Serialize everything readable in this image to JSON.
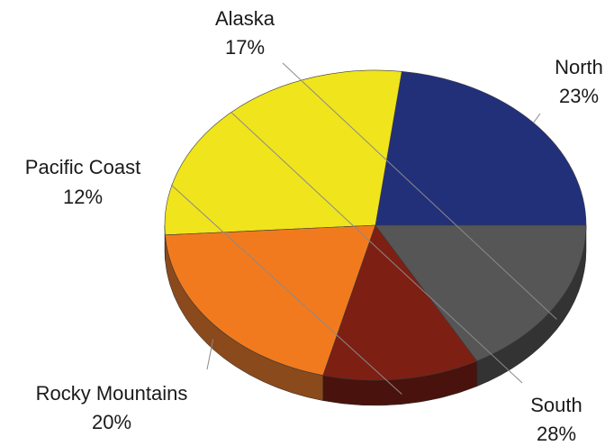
{
  "chart_data": {
    "type": "pie",
    "style": "3d",
    "slices": [
      {
        "label": "North",
        "value": 23,
        "value_label": "23%",
        "color": "#22307a",
        "side_color": "#141c4a"
      },
      {
        "label": "South",
        "value": 28,
        "value_label": "28%",
        "color": "#f0e41c",
        "side_color": "#7c7a3a"
      },
      {
        "label": "Rocky Mountains",
        "value": 20,
        "value_label": "20%",
        "color": "#f27a1e",
        "side_color": "#8a4a1c"
      },
      {
        "label": "Pacific Coast",
        "value": 12,
        "value_label": "12%",
        "color": "#7e1f14",
        "side_color": "#4a120c"
      },
      {
        "label": "Alaska",
        "value": 17,
        "value_label": "17%",
        "color": "#565656",
        "side_color": "#333333"
      }
    ],
    "start_angle": "3 o'clock",
    "direction": "counter-clockwise",
    "legend": "none"
  }
}
